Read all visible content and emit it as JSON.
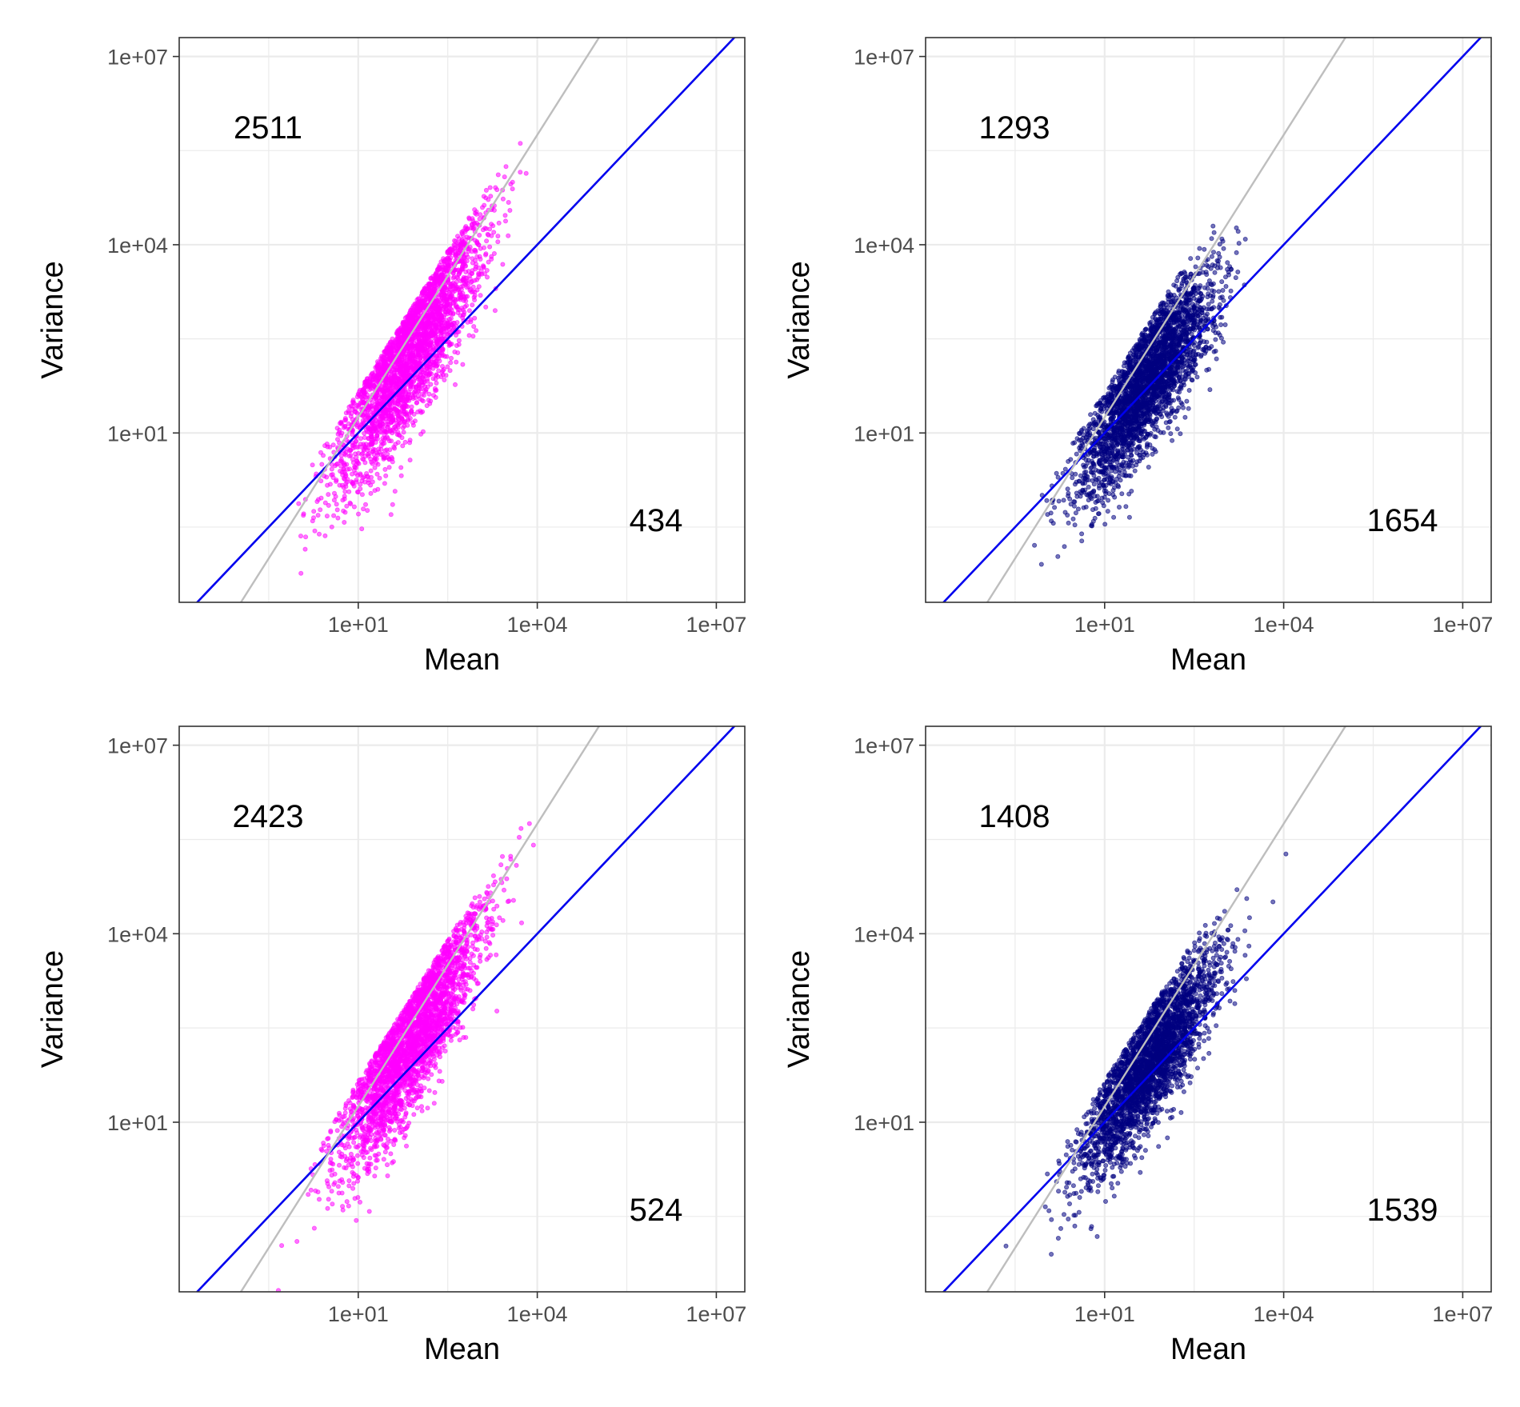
{
  "colors": {
    "identity_line": "#0000ee",
    "quadratic_line": "#bebebe",
    "pink_points": "#ff00ff",
    "navy_points": "#000080",
    "grid": "#ebebeb",
    "panel_border": "#333333"
  },
  "chart_data": [
    {
      "type": "scatter",
      "panel": "top-left",
      "title": "",
      "xlabel": "Mean",
      "ylabel": "Variance",
      "x_scale": "log10",
      "y_scale": "log10",
      "xlim": [
        0.01,
        30000000
      ],
      "ylim": [
        0.02,
        20000000
      ],
      "x_ticks": [
        "1e+01",
        "1e+04",
        "1e+07"
      ],
      "y_ticks": [
        "1e+01",
        "1e+04",
        "1e+07"
      ],
      "grid": true,
      "point_color": "#ff00ff",
      "annotations": {
        "above_count": "2511",
        "below_count": "434"
      },
      "reference_lines": [
        {
          "name": "variance = mean",
          "color": "#0000ee",
          "slope_log": 1,
          "intercept_log": 0
        },
        {
          "name": "quadratic",
          "color": "#bebebe",
          "slope_log": 1.5,
          "intercept_log": -0.25
        }
      ],
      "points_summary": {
        "count_approx": 2945,
        "center_log_mean": 1.9,
        "sd_log_mean": 0.6,
        "slope_log": 1.5,
        "offset_log": -0.55,
        "sd_log_resid": 0.55
      },
      "seed": 11
    },
    {
      "type": "scatter",
      "panel": "top-right",
      "title": "",
      "xlabel": "Mean",
      "ylabel": "Variance",
      "x_scale": "log10",
      "y_scale": "log10",
      "xlim": [
        0.01,
        30000000
      ],
      "ylim": [
        0.02,
        20000000
      ],
      "x_ticks": [
        "1e+01",
        "1e+04",
        "1e+07"
      ],
      "y_ticks": [
        "1e+01",
        "1e+04",
        "1e+07"
      ],
      "grid": true,
      "point_color": "#000080",
      "annotations": {
        "above_count": "1293",
        "below_count": "1654"
      },
      "reference_lines": [
        {
          "name": "variance = mean",
          "color": "#0000ee",
          "slope_log": 1,
          "intercept_log": 0
        },
        {
          "name": "quadratic",
          "color": "#bebebe",
          "slope_log": 1.5,
          "intercept_log": -0.25
        }
      ],
      "points_summary": {
        "count_approx": 2947,
        "center_log_mean": 1.7,
        "sd_log_mean": 0.55,
        "slope_log": 1.25,
        "offset_log": -0.35,
        "sd_log_resid": 0.5
      },
      "seed": 23
    },
    {
      "type": "scatter",
      "panel": "bottom-left",
      "title": "",
      "xlabel": "Mean",
      "ylabel": "Variance",
      "x_scale": "log10",
      "y_scale": "log10",
      "xlim": [
        0.01,
        30000000
      ],
      "ylim": [
        0.02,
        20000000
      ],
      "x_ticks": [
        "1e+01",
        "1e+04",
        "1e+07"
      ],
      "y_ticks": [
        "1e+01",
        "1e+04",
        "1e+07"
      ],
      "grid": true,
      "point_color": "#ff00ff",
      "annotations": {
        "above_count": "2423",
        "below_count": "524"
      },
      "reference_lines": [
        {
          "name": "variance = mean",
          "color": "#0000ee",
          "slope_log": 1,
          "intercept_log": 0
        },
        {
          "name": "quadratic",
          "color": "#bebebe",
          "slope_log": 1.5,
          "intercept_log": -0.25
        }
      ],
      "points_summary": {
        "count_approx": 2947,
        "center_log_mean": 1.9,
        "sd_log_mean": 0.6,
        "slope_log": 1.5,
        "offset_log": -0.55,
        "sd_log_resid": 0.55
      },
      "seed": 37
    },
    {
      "type": "scatter",
      "panel": "bottom-right",
      "title": "",
      "xlabel": "Mean",
      "ylabel": "Variance",
      "x_scale": "log10",
      "y_scale": "log10",
      "xlim": [
        0.01,
        30000000
      ],
      "ylim": [
        0.02,
        20000000
      ],
      "x_ticks": [
        "1e+01",
        "1e+04",
        "1e+07"
      ],
      "y_ticks": [
        "1e+01",
        "1e+04",
        "1e+07"
      ],
      "grid": true,
      "point_color": "#000080",
      "annotations": {
        "above_count": "1408",
        "below_count": "1539"
      },
      "reference_lines": [
        {
          "name": "variance = mean",
          "color": "#0000ee",
          "slope_log": 1,
          "intercept_log": 0
        },
        {
          "name": "quadratic",
          "color": "#bebebe",
          "slope_log": 1.5,
          "intercept_log": -0.25
        }
      ],
      "points_summary": {
        "count_approx": 2947,
        "center_log_mean": 1.75,
        "sd_log_mean": 0.55,
        "slope_log": 1.3,
        "offset_log": -0.35,
        "sd_log_resid": 0.5
      },
      "seed": 51
    }
  ]
}
